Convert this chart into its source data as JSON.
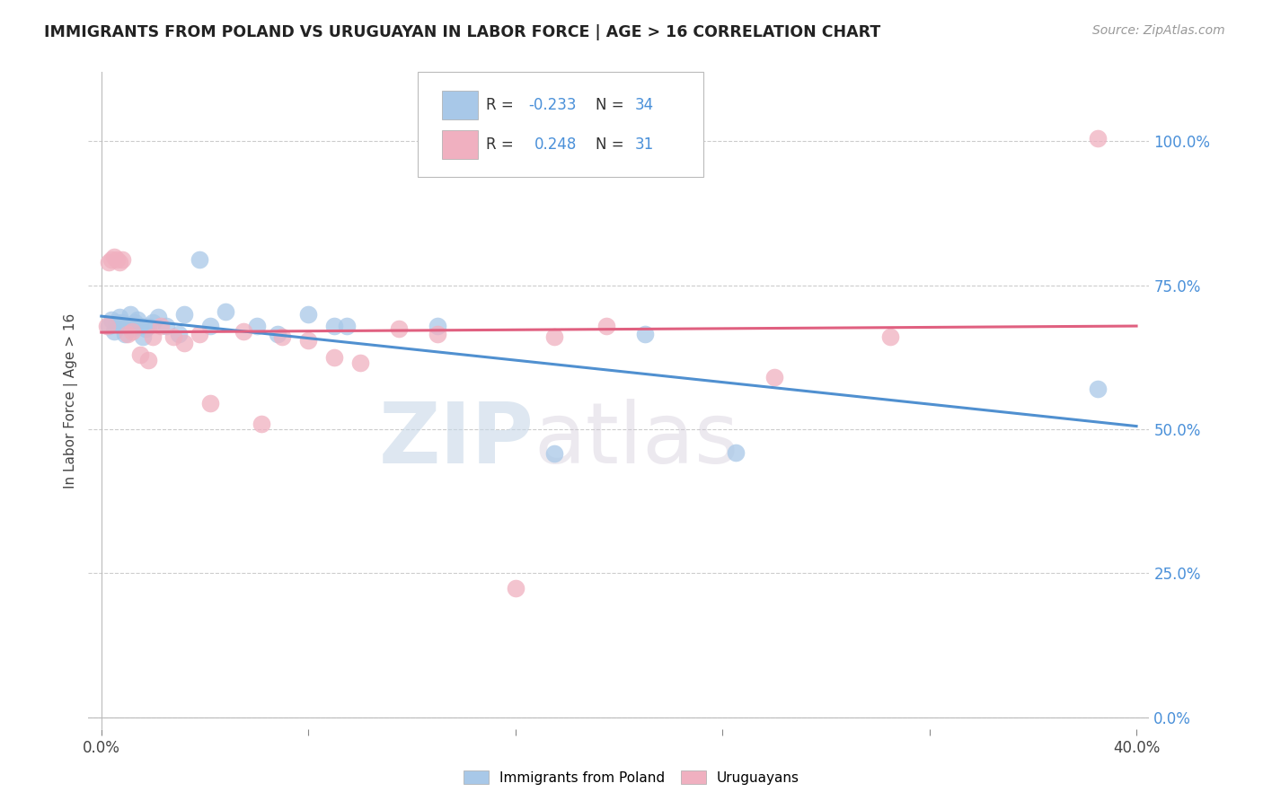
{
  "title": "IMMIGRANTS FROM POLAND VS URUGUAYAN IN LABOR FORCE | AGE > 16 CORRELATION CHART",
  "source": "Source: ZipAtlas.com",
  "ylabel": "In Labor Force | Age > 16",
  "xlim": [
    -0.005,
    0.405
  ],
  "ylim": [
    -0.02,
    1.12
  ],
  "yticks": [
    0.0,
    0.25,
    0.5,
    0.75,
    1.0
  ],
  "ytick_labels": [
    "0.0%",
    "25.0%",
    "50.0%",
    "75.0%",
    "100.0%"
  ],
  "xticks": [
    0.0,
    0.08,
    0.16,
    0.24,
    0.32,
    0.4
  ],
  "xtick_labels": [
    "0.0%",
    "",
    "",
    "",
    "",
    "40.0%"
  ],
  "blue_color": "#a8c8e8",
  "pink_color": "#f0b0c0",
  "blue_line_color": "#5090d0",
  "pink_line_color": "#e06080",
  "watermark_zip": "ZIP",
  "watermark_atlas": "atlas",
  "legend_r1": "R = ",
  "legend_v1": "-0.233",
  "legend_n1": "N = ",
  "legend_nv1": "34",
  "legend_r2": "R =  ",
  "legend_v2": "0.248",
  "legend_n2": "N = ",
  "legend_nv2": "31",
  "blue_scatter_x": [
    0.003,
    0.004,
    0.005,
    0.006,
    0.007,
    0.008,
    0.009,
    0.01,
    0.011,
    0.012,
    0.013,
    0.014,
    0.015,
    0.016,
    0.017,
    0.018,
    0.02,
    0.022,
    0.025,
    0.03,
    0.032,
    0.038,
    0.042,
    0.048,
    0.06,
    0.068,
    0.08,
    0.09,
    0.095,
    0.13,
    0.175,
    0.21,
    0.245,
    0.385
  ],
  "blue_scatter_y": [
    0.68,
    0.69,
    0.67,
    0.685,
    0.695,
    0.685,
    0.665,
    0.68,
    0.7,
    0.675,
    0.685,
    0.69,
    0.68,
    0.66,
    0.675,
    0.68,
    0.685,
    0.695,
    0.68,
    0.665,
    0.7,
    0.795,
    0.68,
    0.705,
    0.68,
    0.665,
    0.7,
    0.68,
    0.68,
    0.68,
    0.458,
    0.665,
    0.46,
    0.57
  ],
  "pink_scatter_x": [
    0.002,
    0.003,
    0.004,
    0.005,
    0.006,
    0.007,
    0.008,
    0.01,
    0.012,
    0.015,
    0.018,
    0.02,
    0.023,
    0.028,
    0.032,
    0.038,
    0.042,
    0.055,
    0.062,
    0.07,
    0.08,
    0.09,
    0.1,
    0.115,
    0.13,
    0.16,
    0.175,
    0.195,
    0.26,
    0.305,
    0.385
  ],
  "pink_scatter_y": [
    0.68,
    0.79,
    0.795,
    0.8,
    0.795,
    0.79,
    0.795,
    0.665,
    0.67,
    0.63,
    0.62,
    0.66,
    0.68,
    0.66,
    0.65,
    0.665,
    0.545,
    0.67,
    0.51,
    0.66,
    0.655,
    0.625,
    0.615,
    0.675,
    0.665,
    0.225,
    0.66,
    0.68,
    0.59,
    0.66,
    1.005
  ],
  "background_color": "#ffffff",
  "grid_color": "#cccccc",
  "tick_color_blue": "#4a90d9",
  "tick_color_dark": "#444444"
}
